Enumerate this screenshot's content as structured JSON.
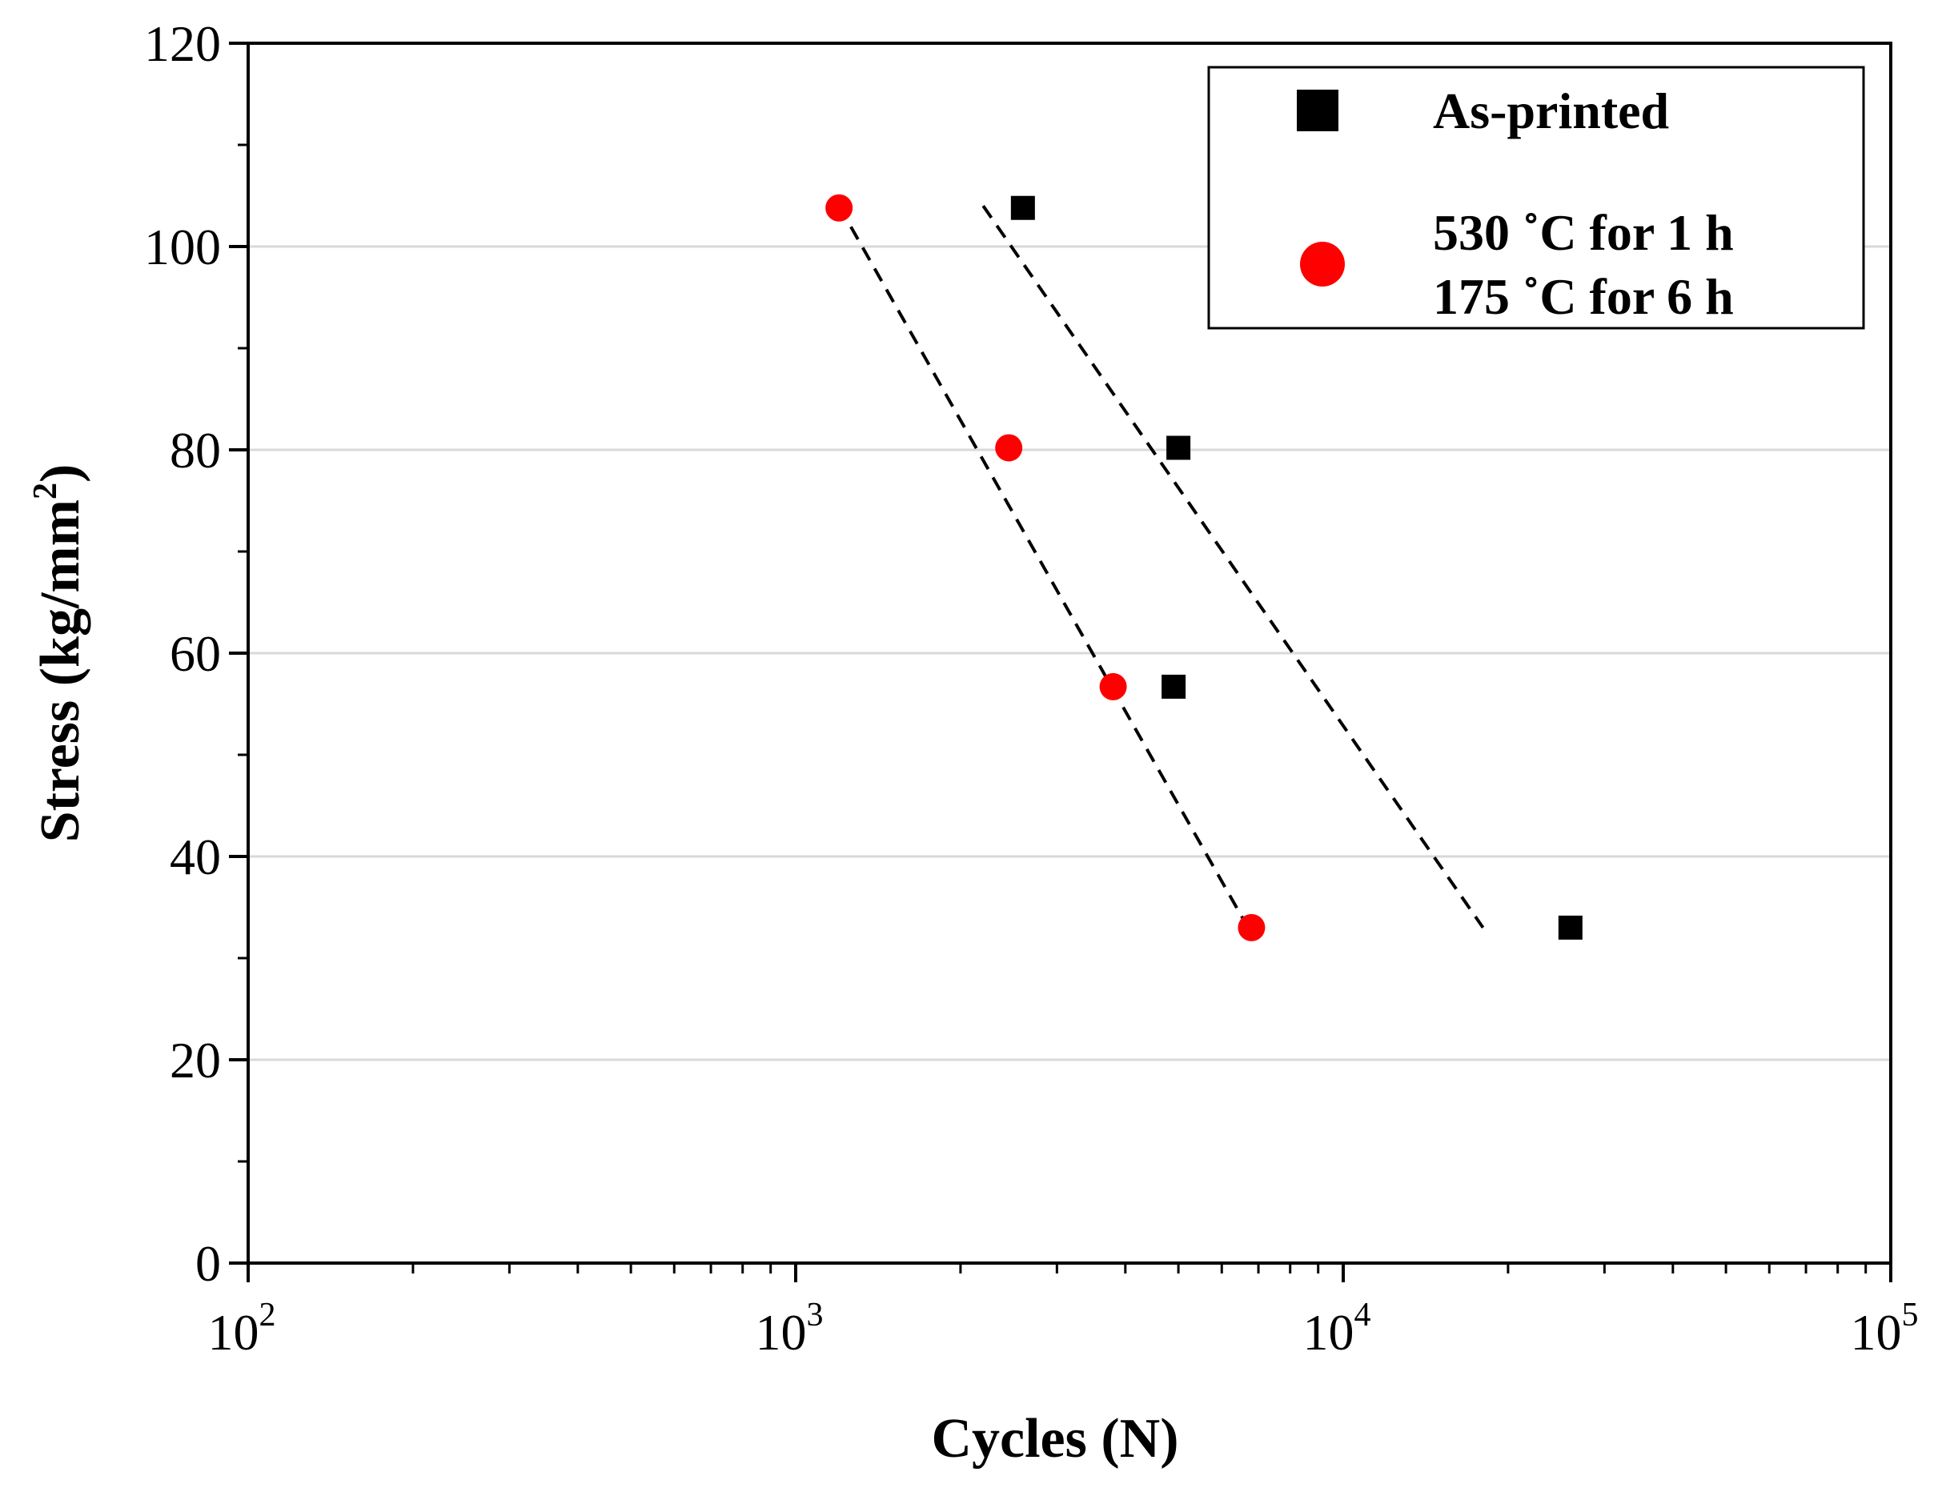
{
  "chart_data": {
    "type": "scatter",
    "title": "",
    "xlabel": "Cycles (N)",
    "ylabel": "Stress (kg/mm",
    "ylabel_sup": "2",
    "ylabel_end": ")",
    "xscale": "log",
    "xlim": [
      100,
      100000
    ],
    "ylim": [
      0,
      120
    ],
    "yticks": [
      "0",
      "20",
      "40",
      "60",
      "80",
      "100",
      "120"
    ],
    "xtick_base": "10",
    "xtick_exponents": [
      "2",
      "3",
      "4",
      "5"
    ],
    "grid": "horizontal",
    "legend_position": "top-right",
    "series": [
      {
        "name": "As-printed",
        "marker": "square",
        "color": "#000000",
        "points": [
          {
            "x": 2600,
            "y": 103.8
          },
          {
            "x": 5000,
            "y": 80.2
          },
          {
            "x": 4900,
            "y": 56.7
          },
          {
            "x": 26000,
            "y": 33.0
          }
        ]
      },
      {
        "name": "530 ˚C for 1 h|175 ˚C for 6 h",
        "marker": "circle",
        "color": "#ff0000",
        "points": [
          {
            "x": 1200,
            "y": 103.8
          },
          {
            "x": 2450,
            "y": 80.2
          },
          {
            "x": 3800,
            "y": 56.7
          },
          {
            "x": 6800,
            "y": 33.0
          }
        ]
      }
    ],
    "trendlines": [
      {
        "series": "As-printed",
        "from": {
          "x": 2200,
          "y": 104
        },
        "to": {
          "x": 18000,
          "y": 33
        },
        "style": "dashed"
      },
      {
        "series": "heat-treated",
        "from": {
          "x": 1200,
          "y": 104
        },
        "to": {
          "x": 6700,
          "y": 33
        },
        "style": "dashed"
      }
    ]
  },
  "legend": {
    "as_printed": "As-printed",
    "heat_line1": "530 ˚C for 1 h",
    "heat_line2": "175 ˚C for 6 h"
  }
}
